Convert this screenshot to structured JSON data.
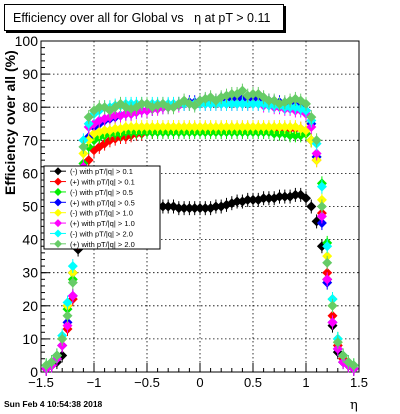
{
  "chart_data": {
    "type": "scatter",
    "title": "Efficiency over all for Global vs   η at pT > 0.11",
    "xlabel": "η",
    "ylabel": "Efficiency over all (%)",
    "xlim": [
      -1.5,
      1.5
    ],
    "ylim": [
      0,
      100
    ],
    "grid": true,
    "legend_position": "left-middle",
    "x_tick_labels": [
      "−1.5",
      "−1",
      "−0.5",
      "0",
      "0.5",
      "1",
      "1.5"
    ],
    "y_tick_labels": [
      "0",
      "10",
      "20",
      "30",
      "40",
      "50",
      "60",
      "70",
      "80",
      "90",
      "100"
    ],
    "series": [
      {
        "name": "(-) with pT/|q| > 0.1",
        "color": "#000000",
        "x": [
          -1.45,
          -1.4,
          -1.35,
          -1.3,
          -1.25,
          -1.2,
          -1.15,
          -1.1,
          -1.05,
          -1.0,
          -0.95,
          -0.9,
          -0.85,
          -0.8,
          -0.75,
          -0.7,
          -0.65,
          -0.6,
          -0.55,
          -0.5,
          -0.45,
          -0.4,
          -0.35,
          -0.3,
          -0.25,
          -0.2,
          -0.15,
          -0.1,
          -0.05,
          0.0,
          0.05,
          0.1,
          0.15,
          0.2,
          0.25,
          0.3,
          0.35,
          0.4,
          0.45,
          0.5,
          0.55,
          0.6,
          0.65,
          0.7,
          0.75,
          0.8,
          0.85,
          0.9,
          0.95,
          1.0,
          1.05,
          1.1,
          1.15,
          1.2,
          1.25,
          1.3,
          1.35,
          1.4,
          1.45
        ],
        "y": [
          1,
          2,
          3,
          5,
          20,
          30,
          37,
          43,
          48,
          49,
          49.5,
          50,
          50,
          50.5,
          50.5,
          50.5,
          50.5,
          50.5,
          50.5,
          50.5,
          50,
          50,
          50,
          50,
          50,
          49.5,
          49.5,
          49.5,
          49.5,
          49.5,
          49.5,
          49.5,
          50,
          50,
          50.5,
          51,
          51.5,
          51.5,
          52,
          52,
          52,
          52.5,
          52.5,
          52.5,
          53,
          53,
          53,
          53.5,
          53.5,
          52.5,
          50,
          45.5,
          38,
          28,
          14,
          6,
          3,
          2,
          1
        ]
      },
      {
        "name": "(+) with pT/|q| > 0.1",
        "color": "#ff0000",
        "x": [
          -1.45,
          -1.4,
          -1.35,
          -1.3,
          -1.25,
          -1.2,
          -1.15,
          -1.1,
          -1.05,
          -1.0,
          -0.95,
          -0.9,
          -0.85,
          -0.8,
          -0.75,
          -0.7,
          -0.65,
          -0.6,
          -0.55,
          -0.5,
          -0.45,
          -0.4,
          -0.35,
          -0.3,
          -0.25,
          -0.2,
          -0.15,
          -0.1,
          -0.05,
          0.0,
          0.05,
          0.1,
          0.15,
          0.2,
          0.25,
          0.3,
          0.35,
          0.4,
          0.45,
          0.5,
          0.55,
          0.6,
          0.65,
          0.7,
          0.75,
          0.8,
          0.85,
          0.9,
          0.95,
          1.0,
          1.05,
          1.1,
          1.15,
          1.2,
          1.25,
          1.3,
          1.35,
          1.4,
          1.45
        ],
        "y": [
          1,
          2,
          4,
          8,
          13,
          22,
          39,
          55,
          64,
          67,
          68,
          69,
          70,
          70.5,
          71,
          71,
          71.5,
          72,
          72,
          72.5,
          72.5,
          73,
          73,
          73,
          73,
          73,
          73.5,
          73.5,
          73.5,
          73.5,
          73.5,
          73.5,
          73.5,
          73.5,
          73.5,
          73.5,
          73.5,
          73.5,
          73.5,
          73.5,
          73.5,
          73.5,
          73.5,
          73.5,
          73.5,
          73.5,
          73.5,
          73.5,
          73.5,
          72,
          70,
          64,
          48,
          30,
          17,
          8,
          4,
          2,
          1
        ]
      },
      {
        "name": "(-) with pT/|q| > 0.5",
        "color": "#00ee00",
        "x": [
          -1.45,
          -1.4,
          -1.35,
          -1.3,
          -1.25,
          -1.2,
          -1.15,
          -1.1,
          -1.05,
          -1.0,
          -0.95,
          -0.9,
          -0.85,
          -0.8,
          -0.75,
          -0.7,
          -0.65,
          -0.6,
          -0.55,
          -0.5,
          -0.45,
          -0.4,
          -0.35,
          -0.3,
          -0.25,
          -0.2,
          -0.15,
          -0.1,
          -0.05,
          0.0,
          0.05,
          0.1,
          0.15,
          0.2,
          0.25,
          0.3,
          0.35,
          0.4,
          0.45,
          0.5,
          0.55,
          0.6,
          0.65,
          0.7,
          0.75,
          0.8,
          0.85,
          0.9,
          0.95,
          1.0,
          1.05,
          1.1,
          1.15,
          1.2,
          1.25,
          1.3,
          1.35,
          1.4,
          1.45
        ],
        "y": [
          2,
          3,
          5,
          10,
          19,
          28,
          45,
          63,
          68,
          70,
          71,
          71.5,
          72,
          72,
          72,
          72.5,
          72.5,
          72.5,
          72.5,
          72.5,
          72.5,
          72.5,
          72.5,
          72.5,
          72.5,
          72.5,
          72.5,
          72.5,
          72.5,
          72.5,
          72.5,
          72.5,
          72.5,
          72.5,
          72.5,
          72.5,
          72.5,
          72.5,
          72.5,
          72.5,
          72.5,
          72.5,
          72.5,
          72,
          72,
          72,
          71.5,
          71.5,
          71.5,
          72,
          70,
          65,
          57,
          39,
          22,
          10,
          5,
          3,
          2
        ]
      },
      {
        "name": "(+) with pT/|q| > 0.5",
        "color": "#0000ff",
        "x": [
          -1.45,
          -1.4,
          -1.35,
          -1.3,
          -1.25,
          -1.2,
          -1.15,
          -1.1,
          -1.05,
          -1.0,
          -0.95,
          -0.9,
          -0.85,
          -0.8,
          -0.75,
          -0.7,
          -0.65,
          -0.6,
          -0.55,
          -0.5,
          -0.45,
          -0.4,
          -0.35,
          -0.3,
          -0.25,
          -0.2,
          -0.15,
          -0.1,
          -0.05,
          0.0,
          0.05,
          0.1,
          0.15,
          0.2,
          0.25,
          0.3,
          0.35,
          0.4,
          0.45,
          0.5,
          0.55,
          0.6,
          0.65,
          0.7,
          0.75,
          0.8,
          0.85,
          0.9,
          0.95,
          1.0,
          1.05,
          1.1,
          1.15,
          1.2,
          1.25,
          1.3,
          1.35,
          1.4,
          1.45
        ],
        "y": [
          1,
          2,
          4,
          8,
          15,
          23,
          42,
          60,
          71,
          74,
          75,
          76,
          76.5,
          77,
          77.5,
          78,
          78,
          78.5,
          79,
          79,
          79.5,
          80,
          80,
          80.5,
          80.5,
          81,
          81,
          81.5,
          81.5,
          82,
          82,
          82,
          82,
          82.5,
          82.5,
          82.5,
          82.5,
          82.5,
          82.5,
          82.5,
          82.5,
          82,
          82,
          81.5,
          81.5,
          81,
          81,
          80.5,
          80.5,
          79,
          75,
          65,
          45,
          27,
          15,
          7,
          3,
          2,
          1
        ]
      },
      {
        "name": "(-) with pT/|q| > 1.0",
        "color": "#ffff00",
        "x": [
          -1.45,
          -1.4,
          -1.35,
          -1.3,
          -1.25,
          -1.2,
          -1.15,
          -1.1,
          -1.05,
          -1.0,
          -0.95,
          -0.9,
          -0.85,
          -0.8,
          -0.75,
          -0.7,
          -0.65,
          -0.6,
          -0.55,
          -0.5,
          -0.45,
          -0.4,
          -0.35,
          -0.3,
          -0.25,
          -0.2,
          -0.15,
          -0.1,
          -0.05,
          0.0,
          0.05,
          0.1,
          0.15,
          0.2,
          0.25,
          0.3,
          0.35,
          0.4,
          0.45,
          0.5,
          0.55,
          0.6,
          0.65,
          0.7,
          0.75,
          0.8,
          0.85,
          0.9,
          0.95,
          1.0,
          1.05,
          1.1,
          1.15,
          1.2,
          1.25,
          1.3,
          1.35,
          1.4,
          1.45
        ],
        "y": [
          2,
          3,
          5,
          10,
          20,
          30,
          48,
          66,
          70,
          72,
          72.5,
          73,
          73,
          73.5,
          73.5,
          74,
          74,
          74,
          74,
          74,
          74,
          74,
          74,
          74,
          74,
          74,
          74,
          74,
          74,
          74,
          74,
          74,
          74,
          74,
          74,
          74,
          74,
          74,
          74,
          74,
          74,
          74,
          74,
          74,
          74,
          74,
          74,
          74,
          73.5,
          73,
          70,
          64,
          52,
          35,
          20,
          9,
          5,
          3,
          2
        ]
      },
      {
        "name": "(+) with pT/|q| > 1.0",
        "color": "#ff00ff",
        "x": [
          -1.45,
          -1.4,
          -1.35,
          -1.3,
          -1.25,
          -1.2,
          -1.15,
          -1.1,
          -1.05,
          -1.0,
          -0.95,
          -0.9,
          -0.85,
          -0.8,
          -0.75,
          -0.7,
          -0.65,
          -0.6,
          -0.55,
          -0.5,
          -0.45,
          -0.4,
          -0.35,
          -0.3,
          -0.25,
          -0.2,
          -0.15,
          -0.1,
          -0.05,
          0.0,
          0.05,
          0.1,
          0.15,
          0.2,
          0.25,
          0.3,
          0.35,
          0.4,
          0.45,
          0.5,
          0.55,
          0.6,
          0.65,
          0.7,
          0.75,
          0.8,
          0.85,
          0.9,
          0.95,
          1.0,
          1.05,
          1.1,
          1.15,
          1.2,
          1.25,
          1.3,
          1.35,
          1.4,
          1.45
        ],
        "y": [
          1,
          2,
          4,
          8,
          14,
          23,
          41,
          62,
          74,
          75,
          76,
          76.5,
          77,
          77.5,
          77.5,
          78,
          78,
          78.5,
          79,
          79,
          79.5,
          79.5,
          80,
          80,
          80.5,
          80.5,
          81,
          81,
          81,
          81,
          81,
          81,
          81,
          81,
          81,
          81,
          81,
          81,
          81,
          81,
          81,
          80.5,
          80.5,
          80,
          80,
          79.5,
          79.5,
          79,
          79,
          78,
          74,
          66,
          47,
          28,
          15,
          7,
          3,
          2,
          1
        ]
      },
      {
        "name": "(-) with pT/|q| > 2.0",
        "color": "#00ffff",
        "x": [
          -1.45,
          -1.4,
          -1.35,
          -1.3,
          -1.25,
          -1.2,
          -1.15,
          -1.1,
          -1.05,
          -1.0,
          -0.95,
          -0.9,
          -0.85,
          -0.8,
          -0.75,
          -0.7,
          -0.65,
          -0.6,
          -0.55,
          -0.5,
          -0.45,
          -0.4,
          -0.35,
          -0.3,
          -0.25,
          -0.2,
          -0.15,
          -0.1,
          -0.05,
          0.0,
          0.05,
          0.1,
          0.15,
          0.2,
          0.25,
          0.3,
          0.35,
          0.4,
          0.45,
          0.5,
          0.55,
          0.6,
          0.65,
          0.7,
          0.75,
          0.8,
          0.85,
          0.9,
          0.95,
          1.0,
          1.05,
          1.1,
          1.15,
          1.2,
          1.25,
          1.3,
          1.35,
          1.4,
          1.45
        ],
        "y": [
          2,
          3,
          5,
          11,
          21,
          32,
          52,
          70,
          75,
          78,
          79,
          80,
          80,
          80.5,
          80.5,
          81,
          81,
          81,
          81,
          81,
          81,
          81,
          81,
          81,
          81,
          81,
          81,
          81,
          81,
          81,
          81,
          81,
          81,
          81,
          81,
          81,
          81,
          81,
          81,
          81,
          81,
          81,
          80.5,
          80.5,
          80.5,
          80,
          80,
          80,
          79.5,
          79,
          76,
          69,
          56,
          38,
          22,
          10,
          5,
          3,
          2
        ]
      },
      {
        "name": "(+) with pT/|q| > 2.0",
        "color": "#66cc66",
        "x": [
          -1.45,
          -1.4,
          -1.35,
          -1.3,
          -1.25,
          -1.2,
          -1.15,
          -1.1,
          -1.05,
          -1.0,
          -0.95,
          -0.9,
          -0.85,
          -0.8,
          -0.75,
          -0.7,
          -0.65,
          -0.6,
          -0.55,
          -0.5,
          -0.45,
          -0.4,
          -0.35,
          -0.3,
          -0.25,
          -0.2,
          -0.15,
          -0.1,
          -0.05,
          0.0,
          0.05,
          0.1,
          0.15,
          0.2,
          0.25,
          0.3,
          0.35,
          0.4,
          0.45,
          0.5,
          0.55,
          0.6,
          0.65,
          0.7,
          0.75,
          0.8,
          0.85,
          0.9,
          0.95,
          1.0,
          1.05,
          1.1,
          1.15,
          1.2,
          1.25,
          1.3,
          1.35,
          1.4,
          1.45
        ],
        "y": [
          2,
          3,
          5,
          10,
          17,
          27,
          48,
          68,
          77,
          79,
          80,
          80,
          79,
          80,
          81,
          80,
          79.5,
          80,
          81,
          81,
          80,
          80.5,
          81,
          80,
          80,
          81,
          82,
          81,
          80.5,
          82,
          82.5,
          83,
          82,
          83,
          83.5,
          84,
          84,
          85,
          83.5,
          84,
          84,
          83,
          82,
          82,
          81,
          81.5,
          82,
          82.5,
          82,
          81,
          77,
          70,
          50,
          33,
          20,
          9,
          5,
          3,
          2
        ]
      }
    ]
  }
}
